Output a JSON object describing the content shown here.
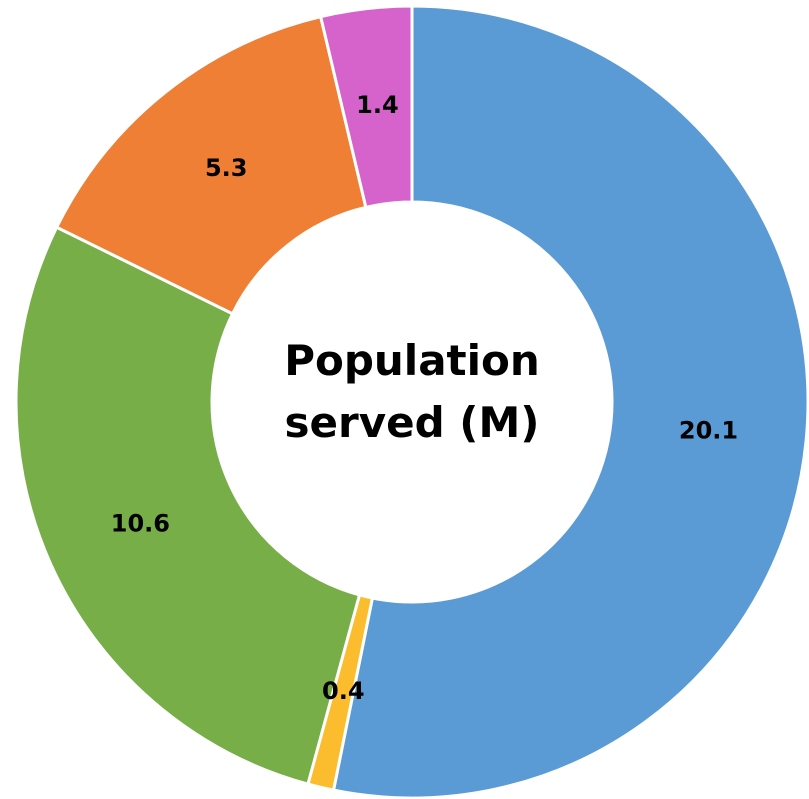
{
  "chart_data": {
    "type": "donut",
    "title": "Population served (M)",
    "values": [
      20.1,
      0.4,
      10.6,
      5.3,
      1.4
    ],
    "colors": [
      "#5b9bd5",
      "#fbbc2d",
      "#77ae48",
      "#ef7f35",
      "#d663cc"
    ]
  }
}
